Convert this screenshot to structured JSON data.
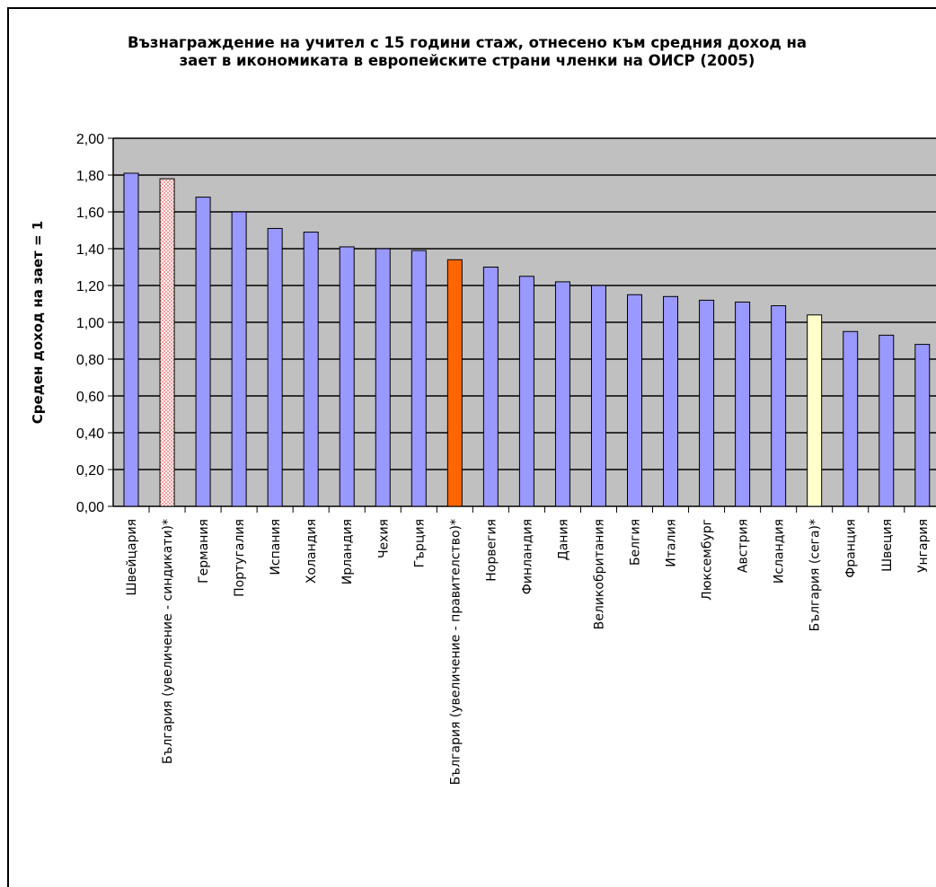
{
  "chart_data": {
    "type": "bar",
    "title": "Възнаграждение на учител с 15 години стаж, отнесено към средния доход на зает в икономиката в европейските страни членки на ОИСР (2005)",
    "xlabel": "",
    "ylabel": "Среден доход на зает = 1",
    "ylim": [
      0,
      2
    ],
    "ytick_labels": [
      "0,00",
      "0,20",
      "0,40",
      "0,60",
      "0,80",
      "1,00",
      "1,20",
      "1,40",
      "1,60",
      "1,80",
      "2,00"
    ],
    "grid": true,
    "categories": [
      "Швейцария",
      "България (увеличение - синдикати)*",
      "Германия",
      "Португалия",
      "Испания",
      "Холандия",
      "Ирландия",
      "Чехия",
      "Гърция",
      "България (увеличение - правителство)*",
      "Норвегия",
      "Финландия",
      "Дания",
      "Великобритания",
      "Белгия",
      "Италия",
      "Люксембург",
      "Австрия",
      "Исландия",
      "България (сега)*",
      "Франция",
      "Швеция",
      "Унгария"
    ],
    "values": [
      1.81,
      1.78,
      1.68,
      1.6,
      1.51,
      1.49,
      1.41,
      1.4,
      1.39,
      1.34,
      1.3,
      1.25,
      1.22,
      1.2,
      1.15,
      1.14,
      1.12,
      1.11,
      1.09,
      1.04,
      0.95,
      0.93,
      0.88
    ],
    "bar_colors": [
      "#9999ff",
      "#ffaaaa",
      "#9999ff",
      "#9999ff",
      "#9999ff",
      "#9999ff",
      "#9999ff",
      "#9999ff",
      "#9999ff",
      "#ff6600",
      "#9999ff",
      "#9999ff",
      "#9999ff",
      "#9999ff",
      "#9999ff",
      "#9999ff",
      "#9999ff",
      "#9999ff",
      "#9999ff",
      "#ffffcc",
      "#9999ff",
      "#9999ff",
      "#9999ff"
    ],
    "plot_background": "#c0c0c0"
  }
}
